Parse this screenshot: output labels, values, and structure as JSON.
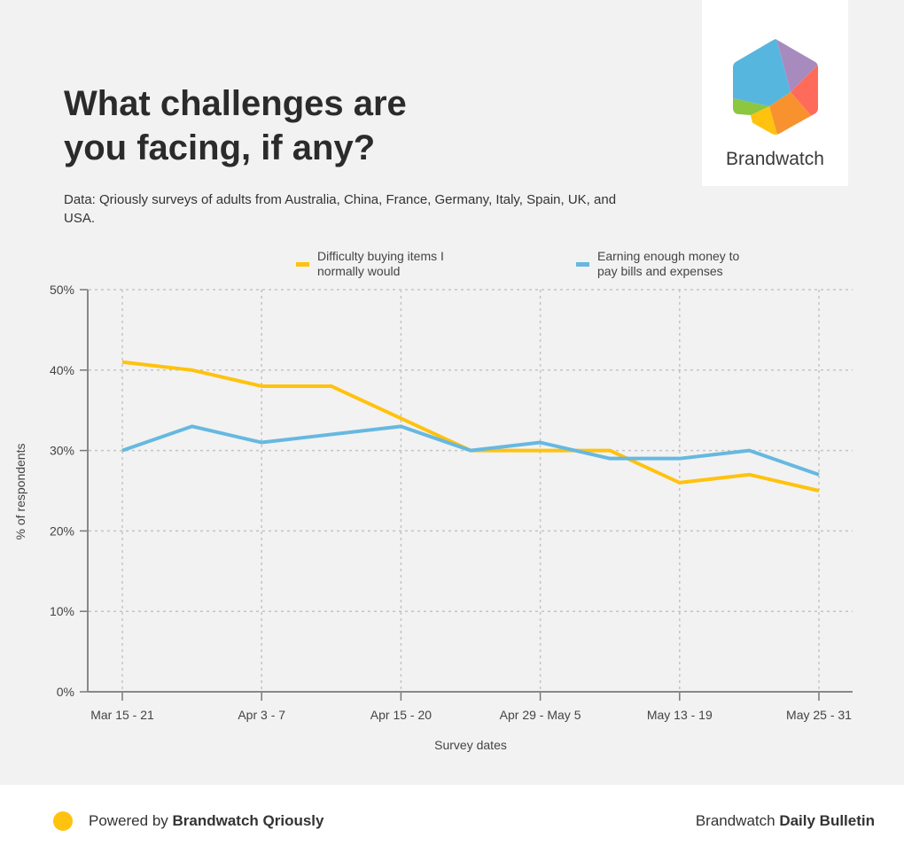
{
  "header": {
    "title_line1": "What challenges are",
    "title_line2": "you facing, if any?",
    "subtitle": "Data: Qriously surveys of adults from Australia, China, France, Germany, Italy, Spain, UK, and USA."
  },
  "logo": {
    "text": "Brandwatch",
    "colors": [
      "#57b6de",
      "#a78bbf",
      "#ff6b5b",
      "#f7922f",
      "#ffc20e",
      "#8dc63f"
    ]
  },
  "footer": {
    "dot_color": "#ffc20e",
    "left_prefix": "Powered by ",
    "left_bold": "Brandwatch Qriously",
    "right_prefix": "Brandwatch ",
    "right_bold": "Daily Bulletin"
  },
  "chart_data": {
    "type": "line",
    "title": "What challenges are you facing, if any?",
    "xlabel": "Survey dates",
    "ylabel": "% of respondents",
    "ylim": [
      0,
      50
    ],
    "yticks": [
      "0%",
      "10%",
      "20%",
      "30%",
      "40%",
      "50%"
    ],
    "ytick_values": [
      0,
      10,
      20,
      30,
      40,
      50
    ],
    "xtick_labels": [
      "Mar 15 - 21",
      "Apr 3 - 7",
      "Apr 15 - 20",
      "Apr 29 - May 5",
      "May 13 - 19",
      "May 25 - 31"
    ],
    "xtick_indices": [
      0,
      2,
      4,
      6,
      8,
      10
    ],
    "n_points": 11,
    "grid": true,
    "legend_position": "top",
    "series": [
      {
        "name": "Difficulty buying items I normally would",
        "legend_lines": [
          "Difficulty buying items I",
          "normally would"
        ],
        "color": "#ffc20e",
        "values": [
          41,
          40,
          38,
          38,
          34,
          30,
          30,
          30,
          26,
          27,
          25
        ]
      },
      {
        "name": "Earning enough money to pay bills and expenses",
        "legend_lines": [
          "Earning enough money to",
          "pay bills and expenses"
        ],
        "color": "#66b8e0",
        "values": [
          30,
          33,
          31,
          32,
          33,
          30,
          31,
          29,
          29,
          30,
          27
        ]
      }
    ]
  }
}
